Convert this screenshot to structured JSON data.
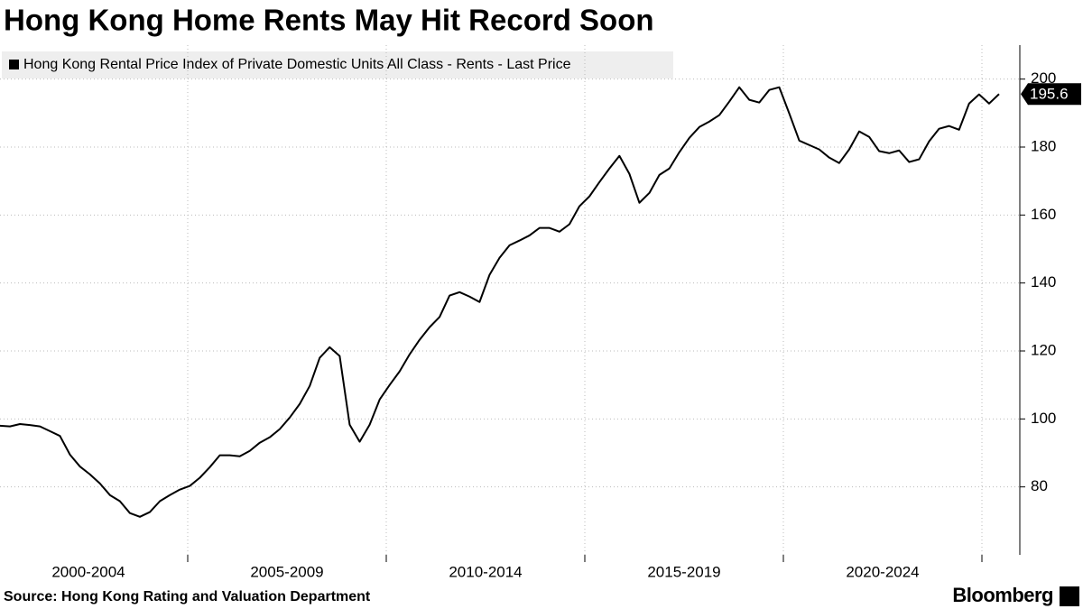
{
  "chart_data": {
    "type": "line",
    "title": "Hong Kong Home Rents May Hit Record Soon",
    "source": "Source: Hong Kong Rating and Valuation Department",
    "brand": "Bloomberg",
    "periods": [
      "2000-2004",
      "2005-2009",
      "2010-2014",
      "2015-2019",
      "2020-2024"
    ],
    "ylim": [
      60,
      210
    ],
    "yticks": [
      80,
      100,
      120,
      140,
      160,
      180,
      200
    ],
    "grid": true,
    "series": [
      {
        "name": "Hong Kong Rental Price Index of Private Domestic Units All Class - Rents - Last Price",
        "color": "#000000",
        "values": [
          98,
          97.8,
          98.5,
          98.2,
          97.8,
          96.4,
          95,
          89.5,
          86,
          83.7,
          81,
          77.6,
          75.8,
          72.3,
          71.2,
          72.6,
          75.8,
          77.6,
          79.2,
          80.3,
          82.7,
          85.8,
          89.3,
          89.3,
          89,
          90.6,
          93,
          94.6,
          97,
          100.4,
          104.4,
          109.7,
          118,
          121.1,
          118.5,
          98.3,
          93.3,
          98.3,
          105.7,
          110,
          114,
          119,
          123.3,
          127,
          130,
          136.3,
          137.3,
          136,
          134.4,
          142.4,
          147.4,
          151.1,
          152.5,
          154,
          156.2,
          156.2,
          155.1,
          157.3,
          162.6,
          165.5,
          169.7,
          173.7,
          177.4,
          172.1,
          163.6,
          166.5,
          171.8,
          173.7,
          178.5,
          182.7,
          185.9,
          187.5,
          189.4,
          193.4,
          197.6,
          193.9,
          193.1,
          196.8,
          197.6,
          189.9,
          181.9,
          180.6,
          179.3,
          176.9,
          175.3,
          179.3,
          184.6,
          183,
          178.8,
          178.2,
          179,
          175.6,
          176.4,
          181.7,
          185.4,
          186.2,
          185.1,
          192.8,
          195.5,
          192.8,
          195.6
        ]
      }
    ]
  }
}
